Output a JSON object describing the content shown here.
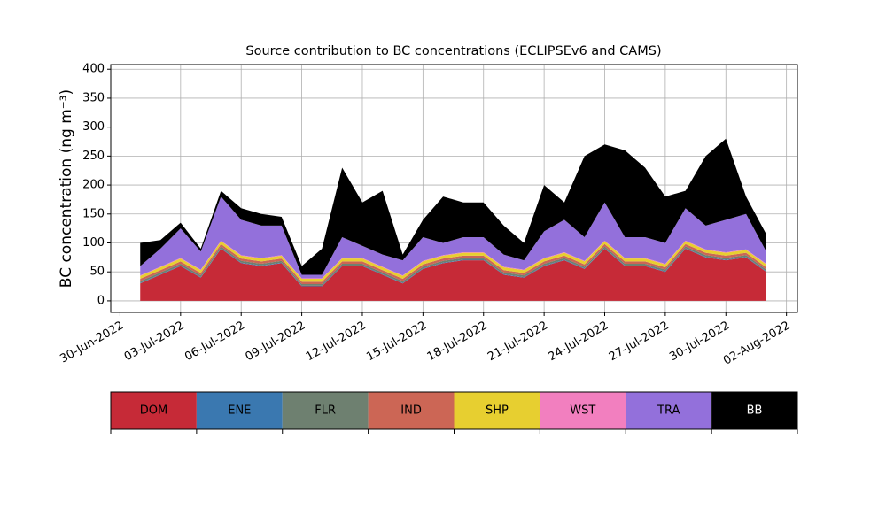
{
  "chart_data": {
    "type": "stacked_area",
    "title": "Source contribution to BC concentrations (ECLIPSEv6 and CAMS)",
    "y_label": "BC concentration (ng m⁻³)",
    "x": [
      "2022-07-01",
      "2022-07-02",
      "2022-07-03",
      "2022-07-04",
      "2022-07-05",
      "2022-07-06",
      "2022-07-07",
      "2022-07-08",
      "2022-07-09",
      "2022-07-10",
      "2022-07-11",
      "2022-07-12",
      "2022-07-13",
      "2022-07-14",
      "2022-07-15",
      "2022-07-16",
      "2022-07-17",
      "2022-07-18",
      "2022-07-19",
      "2022-07-20",
      "2022-07-21",
      "2022-07-22",
      "2022-07-23",
      "2022-07-24",
      "2022-07-25",
      "2022-07-26",
      "2022-07-27",
      "2022-07-28",
      "2022-07-29",
      "2022-07-30",
      "2022-07-31",
      "2022-08-01"
    ],
    "series": [
      {
        "name": "DOM",
        "color": "#c62a37",
        "values": [
          30,
          45,
          60,
          40,
          90,
          65,
          60,
          65,
          25,
          25,
          60,
          60,
          45,
          30,
          55,
          65,
          70,
          70,
          45,
          40,
          60,
          70,
          55,
          90,
          60,
          60,
          50,
          90,
          75,
          70,
          75,
          50
        ]
      },
      {
        "name": "ENE",
        "color": "#3a78b0",
        "values": [
          1,
          1,
          1,
          1,
          1,
          1,
          1,
          1,
          1,
          1,
          1,
          1,
          1,
          1,
          1,
          1,
          1,
          1,
          1,
          1,
          1,
          1,
          1,
          1,
          1,
          1,
          1,
          1,
          1,
          1,
          1,
          1
        ]
      },
      {
        "name": "FLR",
        "color": "#6e8070",
        "values": [
          3,
          3,
          3,
          3,
          3,
          3,
          3,
          3,
          3,
          3,
          3,
          3,
          3,
          3,
          3,
          3,
          3,
          3,
          3,
          3,
          3,
          3,
          3,
          3,
          3,
          3,
          3,
          3,
          3,
          3,
          3,
          3
        ]
      },
      {
        "name": "IND",
        "color": "#cc6655",
        "values": [
          4,
          4,
          4,
          4,
          4,
          4,
          4,
          4,
          4,
          4,
          4,
          4,
          4,
          4,
          4,
          4,
          4,
          4,
          4,
          4,
          4,
          4,
          4,
          4,
          4,
          4,
          4,
          4,
          4,
          4,
          4,
          4
        ]
      },
      {
        "name": "SHP",
        "color": "#e7cf30",
        "values": [
          5,
          5,
          5,
          5,
          5,
          5,
          5,
          5,
          5,
          5,
          5,
          5,
          5,
          5,
          5,
          5,
          5,
          5,
          5,
          5,
          5,
          5,
          5,
          5,
          5,
          5,
          5,
          5,
          5,
          5,
          5,
          5
        ]
      },
      {
        "name": "WST",
        "color": "#f27fbf",
        "values": [
          1,
          1,
          1,
          1,
          1,
          1,
          1,
          1,
          1,
          1,
          1,
          1,
          1,
          1,
          1,
          1,
          1,
          1,
          1,
          1,
          1,
          1,
          1,
          1,
          1,
          1,
          1,
          1,
          1,
          1,
          1,
          1
        ]
      },
      {
        "name": "TRA",
        "color": "#9370db",
        "values": [
          16,
          31,
          51,
          31,
          76,
          61,
          56,
          51,
          6,
          6,
          36,
          21,
          21,
          26,
          41,
          21,
          26,
          26,
          21,
          16,
          46,
          56,
          41,
          66,
          36,
          36,
          36,
          56,
          41,
          56,
          61,
          21
        ]
      },
      {
        "name": "BB",
        "color": "#000000",
        "values": [
          40,
          15,
          10,
          5,
          10,
          20,
          20,
          15,
          15,
          45,
          120,
          75,
          110,
          10,
          30,
          80,
          60,
          60,
          50,
          30,
          80,
          30,
          140,
          100,
          150,
          120,
          80,
          30,
          120,
          140,
          30,
          30
        ]
      }
    ],
    "xlim": [
      "2022-06-29T13:00",
      "2022-08-02T13:00"
    ],
    "xticks": [
      {
        "value": "2022-06-30",
        "label": "30-Jun-2022"
      },
      {
        "value": "2022-07-03",
        "label": "03-Jul-2022"
      },
      {
        "value": "2022-07-06",
        "label": "06-Jul-2022"
      },
      {
        "value": "2022-07-09",
        "label": "09-Jul-2022"
      },
      {
        "value": "2022-07-12",
        "label": "12-Jul-2022"
      },
      {
        "value": "2022-07-15",
        "label": "15-Jul-2022"
      },
      {
        "value": "2022-07-18",
        "label": "18-Jul-2022"
      },
      {
        "value": "2022-07-21",
        "label": "21-Jul-2022"
      },
      {
        "value": "2022-07-24",
        "label": "24-Jul-2022"
      },
      {
        "value": "2022-07-27",
        "label": "27-Jul-2022"
      },
      {
        "value": "2022-07-30",
        "label": "30-Jul-2022"
      },
      {
        "value": "2022-08-02",
        "label": "02-Aug-2022"
      }
    ],
    "ylim": [
      -20,
      408
    ],
    "yticks": [
      0,
      50,
      100,
      150,
      200,
      250,
      300,
      350,
      400
    ],
    "grid": true
  }
}
